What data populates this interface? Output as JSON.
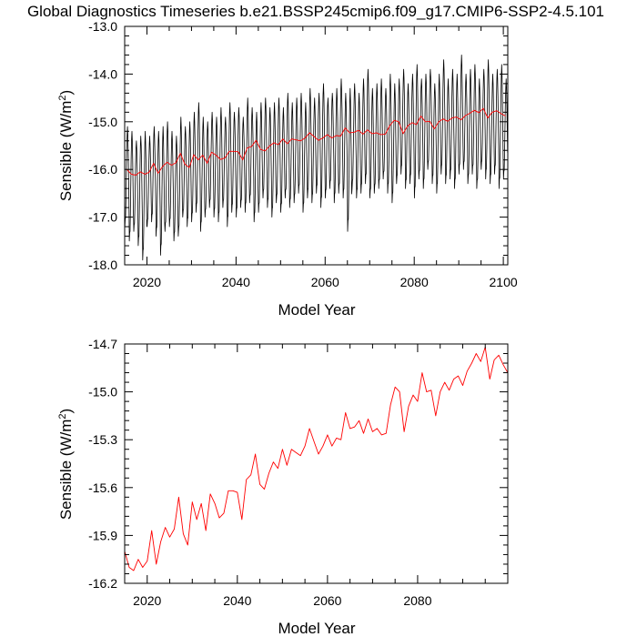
{
  "title": "Global Diagnostics Timeseries b.e21.BSSP245cmip6.f09_g17.CMIP6-SSP2-4.5.101",
  "chart_data": [
    {
      "type": "line",
      "xlabel": "Model Year",
      "ylabel": "Sensible (W/m",
      "ylabel_sup": "2",
      "ylabel_close": ")",
      "xlim": [
        2015,
        2101
      ],
      "ylim": [
        -18.0,
        -13.0
      ],
      "xticks": [
        2020,
        2040,
        2060,
        2080,
        2100
      ],
      "xtick_labels": [
        "2020",
        "2040",
        "2060",
        "2080",
        "2100"
      ],
      "yticks": [
        -18.0,
        -17.0,
        -16.0,
        -15.0,
        -14.0,
        -13.0
      ],
      "ytick_labels": [
        "-18.0",
        "-17.0",
        "-16.0",
        "-15.0",
        "-14.0",
        "-13.0"
      ],
      "grid": false,
      "series": [
        {
          "kind": "monthly",
          "color": "#000000",
          "start_year": 2015,
          "note": "monthly values with strong seasonal cycle",
          "seasonal_min": [
            -17.2,
            -17.5,
            -17.3,
            -17.6,
            -17.9,
            -17.2,
            -17.1,
            -17.4,
            -17.8,
            -17.3,
            -17.2,
            -17.5,
            -17.4,
            -17.0,
            -17.2,
            -17.1,
            -16.9,
            -17.3,
            -17.0,
            -16.8,
            -17.0,
            -17.1,
            -16.8,
            -17.2,
            -16.9,
            -17.0,
            -16.8,
            -16.9,
            -16.7,
            -17.1,
            -16.9,
            -16.6,
            -16.8,
            -17.0,
            -16.7,
            -16.9,
            -16.6,
            -16.8,
            -16.7,
            -16.5,
            -16.9,
            -16.6,
            -16.7,
            -16.5,
            -16.8,
            -16.6,
            -16.4,
            -16.7,
            -16.5,
            -16.6,
            -17.3,
            -16.4,
            -16.6,
            -16.5,
            -16.3,
            -16.6,
            -16.5,
            -16.4,
            -16.2,
            -16.5,
            -16.7,
            -16.3,
            -16.1,
            -16.4,
            -16.3,
            -16.6,
            -16.2,
            -16.4,
            -16.0,
            -16.3,
            -16.5,
            -16.1,
            -16.3,
            -16.2,
            -16.4,
            -16.1,
            -16.0,
            -16.3,
            -16.1,
            -16.4,
            -16.0,
            -16.2,
            -16.3,
            -16.1,
            -16.4,
            -16.2
          ],
          "seasonal_max": [
            -15.1,
            -15.2,
            -15.4,
            -15.3,
            -15.2,
            -15.3,
            -15.1,
            -15.2,
            -15.1,
            -15.0,
            -15.2,
            -15.3,
            -14.9,
            -15.1,
            -15.0,
            -14.8,
            -14.6,
            -14.9,
            -15.0,
            -14.8,
            -14.9,
            -14.7,
            -14.9,
            -14.6,
            -14.8,
            -14.7,
            -14.9,
            -14.5,
            -14.7,
            -14.8,
            -14.6,
            -14.5,
            -14.7,
            -14.6,
            -14.5,
            -14.7,
            -14.4,
            -14.6,
            -14.5,
            -14.4,
            -14.6,
            -14.3,
            -14.5,
            -14.4,
            -14.2,
            -14.5,
            -14.4,
            -14.3,
            -14.1,
            -14.4,
            -14.3,
            -14.2,
            -14.4,
            -14.1,
            -13.9,
            -14.3,
            -14.2,
            -14.1,
            -14.3,
            -14.0,
            -14.2,
            -14.1,
            -13.9,
            -14.2,
            -14.0,
            -13.8,
            -14.1,
            -14.0,
            -13.9,
            -14.2,
            -14.0,
            -13.7,
            -14.1,
            -13.9,
            -14.0,
            -13.6,
            -14.0,
            -13.9,
            -13.8,
            -14.1,
            -13.9,
            -13.7,
            -14.0,
            -13.9,
            -13.8,
            -14.1
          ]
        },
        {
          "kind": "annual",
          "color": "#ff0000",
          "x": [
            2015,
            2016,
            2017,
            2018,
            2019,
            2020,
            2021,
            2022,
            2023,
            2024,
            2025,
            2026,
            2027,
            2028,
            2029,
            2030,
            2031,
            2032,
            2033,
            2034,
            2035,
            2036,
            2037,
            2038,
            2039,
            2040,
            2041,
            2042,
            2043,
            2044,
            2045,
            2046,
            2047,
            2048,
            2049,
            2050,
            2051,
            2052,
            2053,
            2054,
            2055,
            2056,
            2057,
            2058,
            2059,
            2060,
            2061,
            2062,
            2063,
            2064,
            2065,
            2066,
            2067,
            2068,
            2069,
            2070,
            2071,
            2072,
            2073,
            2074,
            2075,
            2076,
            2077,
            2078,
            2079,
            2080,
            2081,
            2082,
            2083,
            2084,
            2085,
            2086,
            2087,
            2088,
            2089,
            2090,
            2091,
            2092,
            2093,
            2094,
            2095,
            2096,
            2097,
            2098,
            2099,
            2100
          ],
          "values": [
            -16.0,
            -16.1,
            -16.12,
            -16.05,
            -16.1,
            -16.06,
            -15.87,
            -16.08,
            -15.94,
            -15.85,
            -15.91,
            -15.86,
            -15.66,
            -15.89,
            -15.96,
            -15.69,
            -15.8,
            -15.7,
            -15.87,
            -15.64,
            -15.7,
            -15.79,
            -15.76,
            -15.62,
            -15.62,
            -15.63,
            -15.8,
            -15.55,
            -15.52,
            -15.39,
            -15.58,
            -15.61,
            -15.51,
            -15.44,
            -15.48,
            -15.36,
            -15.46,
            -15.36,
            -15.38,
            -15.4,
            -15.34,
            -15.23,
            -15.31,
            -15.39,
            -15.34,
            -15.27,
            -15.34,
            -15.29,
            -15.3,
            -15.13,
            -15.23,
            -15.22,
            -15.18,
            -15.26,
            -15.17,
            -15.25,
            -15.23,
            -15.27,
            -15.26,
            -15.08,
            -14.97,
            -15.0,
            -15.25,
            -15.09,
            -15.02,
            -15.06,
            -14.88,
            -15.0,
            -14.99,
            -15.15,
            -15.0,
            -14.94,
            -14.99,
            -14.92,
            -14.9,
            -14.96,
            -14.87,
            -14.82,
            -14.76,
            -14.81,
            -14.72,
            -14.92,
            -14.8,
            -14.77,
            -14.83,
            -14.88
          ]
        }
      ]
    },
    {
      "type": "line",
      "xlabel": "Model Year",
      "ylabel": "Sensible (W/m",
      "ylabel_sup": "2",
      "ylabel_close": ")",
      "xlim": [
        2015,
        2100
      ],
      "ylim": [
        -16.2,
        -14.7
      ],
      "xticks": [
        2020,
        2040,
        2060,
        2080
      ],
      "xtick_labels": [
        "2020",
        "2040",
        "2060",
        "2080"
      ],
      "yticks": [
        -16.2,
        -15.9,
        -15.6,
        -15.3,
        -15.0,
        -14.7
      ],
      "ytick_labels": [
        "-16.2",
        "-15.9",
        "-15.6",
        "-15.3",
        "-15.0",
        "-14.7"
      ],
      "grid": false,
      "series": [
        {
          "kind": "annual",
          "color": "#ff0000",
          "x": [
            2015,
            2016,
            2017,
            2018,
            2019,
            2020,
            2021,
            2022,
            2023,
            2024,
            2025,
            2026,
            2027,
            2028,
            2029,
            2030,
            2031,
            2032,
            2033,
            2034,
            2035,
            2036,
            2037,
            2038,
            2039,
            2040,
            2041,
            2042,
            2043,
            2044,
            2045,
            2046,
            2047,
            2048,
            2049,
            2050,
            2051,
            2052,
            2053,
            2054,
            2055,
            2056,
            2057,
            2058,
            2059,
            2060,
            2061,
            2062,
            2063,
            2064,
            2065,
            2066,
            2067,
            2068,
            2069,
            2070,
            2071,
            2072,
            2073,
            2074,
            2075,
            2076,
            2077,
            2078,
            2079,
            2080,
            2081,
            2082,
            2083,
            2084,
            2085,
            2086,
            2087,
            2088,
            2089,
            2090,
            2091,
            2092,
            2093,
            2094,
            2095,
            2096,
            2097,
            2098,
            2099,
            2100
          ],
          "values": [
            -16.0,
            -16.1,
            -16.12,
            -16.05,
            -16.1,
            -16.06,
            -15.87,
            -16.08,
            -15.94,
            -15.85,
            -15.91,
            -15.86,
            -15.66,
            -15.89,
            -15.96,
            -15.69,
            -15.8,
            -15.7,
            -15.87,
            -15.64,
            -15.7,
            -15.79,
            -15.76,
            -15.62,
            -15.62,
            -15.63,
            -15.8,
            -15.55,
            -15.52,
            -15.39,
            -15.58,
            -15.61,
            -15.51,
            -15.44,
            -15.48,
            -15.36,
            -15.46,
            -15.36,
            -15.38,
            -15.4,
            -15.34,
            -15.23,
            -15.31,
            -15.39,
            -15.34,
            -15.27,
            -15.34,
            -15.29,
            -15.3,
            -15.13,
            -15.23,
            -15.22,
            -15.18,
            -15.26,
            -15.17,
            -15.25,
            -15.23,
            -15.27,
            -15.26,
            -15.08,
            -14.97,
            -15.0,
            -15.25,
            -15.09,
            -15.02,
            -15.06,
            -14.88,
            -15.0,
            -14.99,
            -15.15,
            -15.0,
            -14.94,
            -14.99,
            -14.92,
            -14.9,
            -14.96,
            -14.87,
            -14.82,
            -14.76,
            -14.81,
            -14.72,
            -14.92,
            -14.8,
            -14.77,
            -14.83,
            -14.88
          ]
        }
      ]
    }
  ]
}
